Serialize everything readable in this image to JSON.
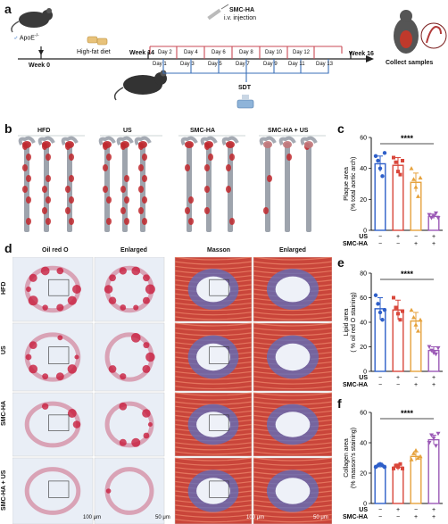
{
  "panels": {
    "a": "a",
    "b": "b",
    "c": "c",
    "d": "d",
    "e": "e",
    "f": "f"
  },
  "timeline": {
    "apoe_label": "ApoE",
    "apoe_sup": "-/-",
    "week0": "Week 0",
    "hfd": "High-fat diet",
    "week14": "Week 14",
    "week16": "Week 16",
    "injection_title": "SMC-HA",
    "injection_sub": "i.v. injection",
    "sdt": "SDT",
    "collect": "Collect samples",
    "top_days": [
      "Day 2",
      "Day 4",
      "Day 6",
      "Day 8",
      "Day 10",
      "Day 12"
    ],
    "bottom_days": [
      "Day 1",
      "Day 3",
      "Day 5",
      "Day 7",
      "Day 9",
      "Day 11",
      "Day 13"
    ]
  },
  "aorta_groups": [
    "HFD",
    "US",
    "SMC-HA",
    "SMC-HA + US"
  ],
  "histology": {
    "col_headers": [
      "Oil red O",
      "Enlarged",
      "Masson",
      "Enlarged"
    ],
    "row_labels": [
      "HFD",
      "US",
      "SMC-HA",
      "SMC-HA + US"
    ],
    "scale_100": "100 μm",
    "scale_50": "50 μm"
  },
  "colors": {
    "hfd": "#2e5fc9",
    "us": "#d9473b",
    "smcha": "#e6a23c",
    "smcha_us": "#9b59b6",
    "timeline_red": "#c94a55",
    "timeline_blue": "#3a6fb7"
  },
  "condition_table": {
    "row1_label": "US",
    "row2_label": "SMC-HA",
    "row1": [
      "−",
      "+",
      "−",
      "+"
    ],
    "row2": [
      "−",
      "−",
      "+",
      "+"
    ]
  },
  "chart_data": [
    {
      "type": "bar",
      "panel": "c",
      "ylabel_line1": "Plaque area",
      "ylabel_line2": "(% total aortic arch)",
      "ylim": [
        0,
        60
      ],
      "yticks": [
        "0",
        "20",
        "40",
        "60"
      ],
      "significance": "****",
      "values": [
        43,
        42,
        31,
        9
      ],
      "errors": [
        5,
        5,
        6,
        1.5
      ],
      "points": [
        [
          48,
          45,
          40,
          35,
          50
        ],
        [
          47,
          44,
          38,
          36,
          45
        ],
        [
          40,
          33,
          28,
          22,
          34
        ],
        [
          10,
          8,
          9,
          11,
          8
        ]
      ]
    },
    {
      "type": "bar",
      "panel": "e",
      "ylabel_line1": "Lipid area",
      "ylabel_line2": "( % oil red O staining)",
      "ylim": [
        0,
        80
      ],
      "yticks": [
        "0",
        "20",
        "40",
        "60",
        "80"
      ],
      "significance": "****",
      "values": [
        51,
        50,
        41,
        17
      ],
      "errors": [
        9,
        8,
        7,
        3
      ],
      "points": [
        [
          62,
          55,
          48,
          42,
          50
        ],
        [
          60,
          52,
          47,
          42,
          49
        ],
        [
          50,
          44,
          38,
          33,
          42
        ],
        [
          20,
          17,
          15,
          14,
          19
        ]
      ]
    },
    {
      "type": "bar",
      "panel": "f",
      "ylabel_line1": "Collagen area",
      "ylabel_line2": "(% masson's staining)",
      "ylim": [
        0,
        60
      ],
      "yticks": [
        "0",
        "20",
        "40",
        "60"
      ],
      "significance": "****",
      "values": [
        25,
        24,
        31,
        42
      ],
      "errors": [
        1.5,
        2,
        3,
        3
      ],
      "points": [
        [
          24,
          25,
          26,
          25,
          24
        ],
        [
          23,
          25,
          24,
          26,
          23
        ],
        [
          29,
          33,
          35,
          30,
          31
        ],
        [
          40,
          45,
          43,
          38,
          46
        ]
      ]
    }
  ]
}
